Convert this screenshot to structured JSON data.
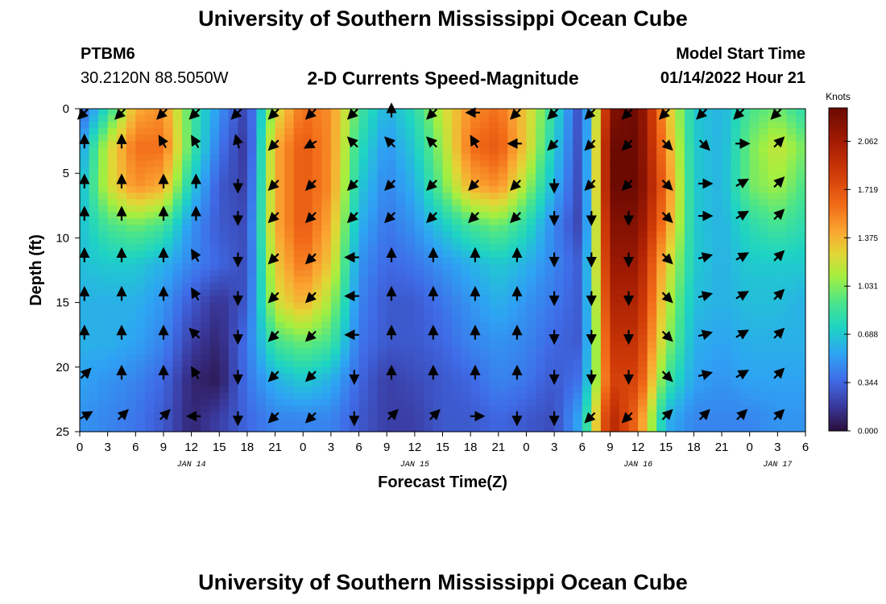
{
  "header": {
    "title": "University of Southern Mississippi Ocean Cube",
    "station_id": "PTBM6",
    "coordinates": "30.2120N  88.5050W",
    "start_label": "Model Start Time",
    "start_value": "01/14/2022 Hour 21"
  },
  "footer": {
    "title": "University of Southern Mississippi Ocean Cube"
  },
  "chart_data": {
    "type": "heatmap",
    "title": "2-D Currents Speed-Magnitude",
    "xlabel": "Forecast Time(Z)",
    "ylabel": "Depth (ft)",
    "x_tick_labels": [
      "0",
      "3",
      "6",
      "9",
      "12",
      "15",
      "18",
      "21",
      "0",
      "3",
      "6",
      "9",
      "12",
      "15",
      "18",
      "21",
      "0",
      "3",
      "6",
      "9",
      "12",
      "15",
      "18",
      "21",
      "0",
      "3",
      "6"
    ],
    "x_range_hours": [
      0,
      78
    ],
    "day_labels": [
      {
        "label": "JAN 14",
        "hour": 12
      },
      {
        "label": "JAN 15",
        "hour": 36
      },
      {
        "label": "JAN 16",
        "hour": 60
      },
      {
        "label": "JAN 17",
        "hour": 75
      }
    ],
    "y_ticks": [
      0,
      5,
      10,
      15,
      20,
      25
    ],
    "y_range_ft": [
      0,
      25
    ],
    "y_inverted": true,
    "colorbar": {
      "unit": "Knots",
      "min": 0.0,
      "max": 2.3,
      "tick_values": [
        0.0,
        0.344,
        0.688,
        1.031,
        1.375,
        1.719,
        2.062
      ],
      "tick_labels": [
        "0.000",
        "0.344",
        "0.688",
        "1.031",
        "1.375",
        "1.719",
        "2.062"
      ]
    },
    "speed_knots_rows_by_depth": {
      "depths_ft": [
        0,
        3,
        6,
        9,
        12,
        15,
        18,
        21,
        24
      ],
      "hours": [
        0,
        3,
        6,
        9,
        12,
        15,
        18,
        21,
        24,
        27,
        30,
        33,
        36,
        39,
        42,
        45,
        48,
        51,
        54,
        57,
        60,
        63,
        66,
        69,
        72,
        75,
        78
      ],
      "values": [
        [
          0.3,
          0.8,
          1.4,
          1.5,
          0.9,
          0.5,
          0.2,
          1.2,
          1.6,
          1.5,
          0.9,
          0.6,
          0.8,
          1.2,
          1.5,
          1.6,
          1.3,
          0.8,
          0.2,
          2.2,
          2.3,
          1.4,
          0.7,
          0.6,
          0.9,
          1.0,
          0.8
        ],
        [
          0.5,
          1.2,
          1.6,
          1.6,
          0.9,
          0.4,
          0.15,
          1.4,
          1.7,
          1.5,
          0.8,
          0.5,
          0.7,
          1.1,
          1.6,
          1.7,
          1.3,
          0.7,
          0.2,
          2.3,
          2.3,
          1.5,
          0.7,
          0.6,
          1.0,
          1.2,
          1.0
        ],
        [
          0.6,
          1.2,
          1.5,
          1.4,
          0.7,
          0.3,
          0.2,
          1.4,
          1.7,
          1.5,
          0.7,
          0.45,
          0.6,
          1.0,
          1.4,
          1.5,
          1.1,
          0.6,
          0.2,
          2.3,
          2.3,
          1.6,
          0.7,
          0.6,
          1.0,
          1.1,
          0.9
        ],
        [
          0.65,
          0.9,
          1.0,
          0.9,
          0.5,
          0.3,
          0.25,
          1.4,
          1.7,
          1.4,
          0.6,
          0.4,
          0.5,
          0.7,
          0.9,
          1.0,
          0.8,
          0.45,
          0.2,
          2.2,
          2.2,
          1.5,
          0.7,
          0.6,
          0.8,
          0.9,
          0.8
        ],
        [
          0.65,
          0.7,
          0.7,
          0.6,
          0.45,
          0.35,
          0.25,
          1.3,
          1.6,
          1.3,
          0.5,
          0.35,
          0.4,
          0.5,
          0.6,
          0.7,
          0.6,
          0.45,
          0.3,
          2.1,
          2.1,
          1.3,
          0.7,
          0.6,
          0.7,
          0.7,
          0.7
        ],
        [
          0.6,
          0.6,
          0.6,
          0.5,
          0.3,
          0.15,
          0.3,
          1.2,
          1.4,
          1.1,
          0.45,
          0.3,
          0.3,
          0.4,
          0.5,
          0.6,
          0.5,
          0.4,
          0.3,
          2.0,
          2.0,
          1.2,
          0.65,
          0.6,
          0.65,
          0.65,
          0.6
        ],
        [
          0.6,
          0.6,
          0.55,
          0.45,
          0.2,
          0.1,
          0.4,
          0.9,
          1.0,
          0.9,
          0.4,
          0.3,
          0.3,
          0.35,
          0.45,
          0.5,
          0.45,
          0.35,
          0.3,
          1.9,
          1.9,
          1.1,
          0.6,
          0.55,
          0.6,
          0.6,
          0.6
        ],
        [
          0.55,
          0.5,
          0.45,
          0.35,
          0.1,
          0.05,
          0.4,
          0.6,
          0.7,
          0.6,
          0.35,
          0.2,
          0.25,
          0.3,
          0.35,
          0.45,
          0.4,
          0.3,
          0.4,
          1.8,
          1.8,
          0.9,
          0.55,
          0.5,
          0.55,
          0.55,
          0.55
        ],
        [
          0.5,
          0.45,
          0.4,
          0.3,
          0.1,
          0.2,
          0.35,
          0.45,
          0.45,
          0.45,
          0.3,
          0.2,
          0.2,
          0.3,
          0.3,
          0.35,
          0.3,
          0.25,
          0.6,
          2.0,
          1.6,
          0.6,
          0.45,
          0.45,
          0.45,
          0.5,
          0.5
        ]
      ]
    },
    "direction_arrows": {
      "hours": [
        0.5,
        4.5,
        9,
        12.5,
        17,
        21,
        25,
        29.5,
        33.5,
        38,
        42.5,
        47,
        51,
        55,
        59,
        63,
        67,
        71,
        75
      ],
      "depths_ft": [
        0.3,
        2.7,
        5.8,
        8.3,
        11.5,
        14.5,
        17.5,
        20.6,
        23.8
      ],
      "angles_deg_from_north": [
        [
          225,
          225,
          225,
          225,
          225,
          225,
          225,
          225,
          0,
          225,
          270,
          225,
          225,
          225,
          225,
          225,
          225,
          225,
          225
        ],
        [
          0,
          0,
          330,
          330,
          345,
          225,
          240,
          315,
          315,
          315,
          330,
          270,
          225,
          225,
          225,
          135,
          135,
          90,
          45
        ],
        [
          0,
          0,
          0,
          0,
          180,
          225,
          225,
          225,
          225,
          225,
          225,
          225,
          180,
          225,
          225,
          135,
          90,
          60,
          45
        ],
        [
          0,
          0,
          0,
          0,
          180,
          225,
          225,
          225,
          225,
          225,
          225,
          225,
          180,
          180,
          180,
          135,
          90,
          60,
          45
        ],
        [
          0,
          0,
          0,
          330,
          180,
          225,
          225,
          270,
          0,
          0,
          0,
          0,
          180,
          180,
          180,
          135,
          75,
          60,
          45
        ],
        [
          0,
          0,
          0,
          330,
          180,
          225,
          225,
          270,
          0,
          0,
          0,
          0,
          180,
          180,
          180,
          135,
          75,
          60,
          45
        ],
        [
          0,
          0,
          0,
          315,
          180,
          225,
          225,
          270,
          0,
          0,
          0,
          0,
          180,
          180,
          180,
          135,
          75,
          60,
          45
        ],
        [
          45,
          0,
          0,
          330,
          180,
          225,
          225,
          180,
          0,
          0,
          0,
          0,
          180,
          180,
          180,
          135,
          75,
          60,
          45
        ],
        [
          60,
          45,
          45,
          270,
          180,
          225,
          225,
          180,
          45,
          45,
          90,
          180,
          180,
          225,
          225,
          45,
          45,
          45,
          45
        ]
      ]
    }
  }
}
